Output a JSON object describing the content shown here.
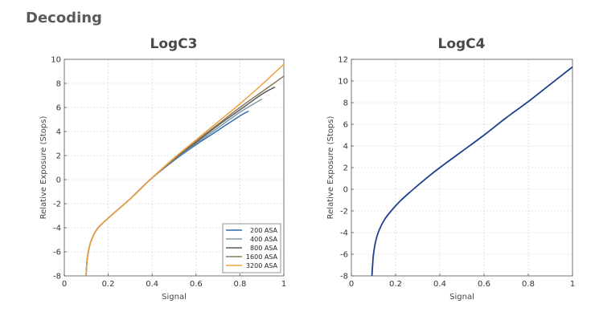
{
  "page": {
    "title": "Decoding"
  },
  "chart_data": [
    {
      "type": "line",
      "title": "LogC3",
      "xlabel": "Signal",
      "ylabel": "Relative Exposure (Stops)",
      "xlim": [
        0,
        1
      ],
      "ylim": [
        -8,
        10
      ],
      "xticks": [
        "0",
        "0.2",
        "0.4",
        "0.6",
        "0.8",
        "1"
      ],
      "yticks": [
        "-8",
        "-6",
        "-4",
        "-2",
        "0",
        "2",
        "4",
        "6",
        "8",
        "10"
      ],
      "grid": true,
      "legend_position": "bottom-right",
      "series": [
        {
          "name": "200 ASA",
          "color": "#2f6fae",
          "x": [
            0.099,
            0.105,
            0.12,
            0.15,
            0.2,
            0.3,
            0.391,
            0.5,
            0.6,
            0.7,
            0.8,
            0.84
          ],
          "y": [
            -8.0,
            -6.5,
            -5.2,
            -4.1,
            -3.2,
            -1.6,
            0.0,
            1.6,
            2.9,
            4.1,
            5.3,
            5.7
          ]
        },
        {
          "name": "400 ASA",
          "color": "#7f9aab",
          "x": [
            0.099,
            0.105,
            0.12,
            0.15,
            0.2,
            0.3,
            0.391,
            0.5,
            0.6,
            0.7,
            0.8,
            0.9
          ],
          "y": [
            -8.0,
            -6.5,
            -5.2,
            -4.1,
            -3.2,
            -1.6,
            0.0,
            1.65,
            3.0,
            4.3,
            5.6,
            6.7
          ]
        },
        {
          "name": "800 ASA",
          "color": "#5c5c5c",
          "x": [
            0.099,
            0.105,
            0.12,
            0.15,
            0.2,
            0.3,
            0.391,
            0.5,
            0.6,
            0.7,
            0.8,
            0.9,
            0.96
          ],
          "y": [
            -8.0,
            -6.5,
            -5.2,
            -4.1,
            -3.2,
            -1.6,
            0.0,
            1.7,
            3.1,
            4.5,
            5.8,
            7.1,
            7.7
          ]
        },
        {
          "name": "1600 ASA",
          "color": "#8a7a5a",
          "x": [
            0.099,
            0.105,
            0.12,
            0.15,
            0.2,
            0.3,
            0.391,
            0.5,
            0.6,
            0.7,
            0.8,
            0.9,
            1.0
          ],
          "y": [
            -8.0,
            -6.5,
            -5.2,
            -4.1,
            -3.2,
            -1.6,
            0.0,
            1.75,
            3.2,
            4.6,
            6.0,
            7.3,
            8.6
          ]
        },
        {
          "name": "3200 ASA",
          "color": "#f0a040",
          "x": [
            0.099,
            0.105,
            0.12,
            0.15,
            0.2,
            0.3,
            0.391,
            0.5,
            0.6,
            0.7,
            0.8,
            0.9,
            1.0
          ],
          "y": [
            -8.0,
            -6.5,
            -5.2,
            -4.1,
            -3.2,
            -1.6,
            0.0,
            1.8,
            3.3,
            4.8,
            6.3,
            7.9,
            9.6
          ]
        }
      ]
    },
    {
      "type": "line",
      "title": "LogC4",
      "xlabel": "Signal",
      "ylabel": "Relative Exposure (Stops)",
      "xlim": [
        0,
        1
      ],
      "ylim": [
        -8,
        12
      ],
      "xticks": [
        "0",
        "0.2",
        "0.4",
        "0.6",
        "0.8",
        "1"
      ],
      "yticks": [
        "-8",
        "-6",
        "-4",
        "-2",
        "0",
        "2",
        "4",
        "6",
        "8",
        "10",
        "12"
      ],
      "grid": true,
      "series": [
        {
          "color": "#1f3f8f",
          "x": [
            0.093,
            0.096,
            0.1,
            0.11,
            0.125,
            0.15,
            0.18,
            0.22,
            0.28,
            0.35,
            0.4,
            0.5,
            0.6,
            0.7,
            0.8,
            0.9,
            1.0
          ],
          "y": [
            -8.0,
            -7.0,
            -6.0,
            -4.8,
            -3.8,
            -2.8,
            -2.0,
            -1.1,
            0.0,
            1.2,
            2.0,
            3.5,
            5.0,
            6.6,
            8.1,
            9.7,
            11.3
          ]
        }
      ]
    }
  ]
}
